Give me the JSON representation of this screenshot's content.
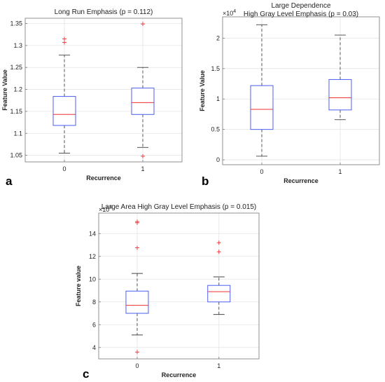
{
  "colors": {
    "box": "#4a5ff0",
    "median": "#ee3030",
    "whisker": "#444444",
    "outlier": "#ee3030",
    "grid": "#e4e4e4",
    "axes": "#777777"
  },
  "chart_data": [
    {
      "type": "box",
      "panel_label": "a",
      "title": [
        "Long Run Emphasis (p = 0.112)"
      ],
      "xlabel": "Recurrence",
      "ylabel": "Feature Value",
      "exponent_label": "",
      "categories": [
        "0",
        "1"
      ],
      "ylim": [
        1.035,
        1.362
      ],
      "yticks": [
        1.05,
        1.1,
        1.15,
        1.2,
        1.25,
        1.3,
        1.35
      ],
      "ytick_labels": [
        "1.05",
        "1.1",
        "1.15",
        "1.2",
        "1.25",
        "1.3",
        "1.35"
      ],
      "grid": true,
      "boxes": [
        {
          "whisker_low": 1.055,
          "q1": 1.118,
          "median": 1.143,
          "q3": 1.184,
          "whisker_high": 1.278,
          "outliers": [
            1.307,
            1.315
          ]
        },
        {
          "whisker_low": 1.068,
          "q1": 1.143,
          "median": 1.17,
          "q3": 1.203,
          "whisker_high": 1.25,
          "outliers": [
            1.048,
            1.349
          ]
        }
      ]
    },
    {
      "type": "box",
      "panel_label": "b",
      "title": [
        "Large Dependence",
        "High Gray Level Emphasis (p = 0.03)"
      ],
      "xlabel": "Recurrence",
      "ylabel": "Feature Value",
      "exponent_label": "10^4",
      "categories": [
        "0",
        "1"
      ],
      "ylim": [
        -0.08,
        2.35
      ],
      "yticks": [
        0,
        0.5,
        1,
        1.5,
        2
      ],
      "ytick_labels": [
        "0",
        "0.5",
        "1",
        "1.5",
        "2"
      ],
      "grid": true,
      "boxes": [
        {
          "whisker_low": 0.06,
          "q1": 0.5,
          "median": 0.83,
          "q3": 1.22,
          "whisker_high": 2.22,
          "outliers": []
        },
        {
          "whisker_low": 0.66,
          "q1": 0.82,
          "median": 1.02,
          "q3": 1.32,
          "whisker_high": 2.05,
          "outliers": []
        }
      ]
    },
    {
      "type": "box",
      "panel_label": "c",
      "title": [
        "Large Area High Gray Level Emphasis (p = 0.015)"
      ],
      "xlabel": "Recurrence",
      "ylabel": "Feature value",
      "exponent_label": "10^4",
      "categories": [
        "0",
        "1"
      ],
      "ylim": [
        3.0,
        15.8
      ],
      "yticks": [
        4,
        6,
        8,
        10,
        12,
        14
      ],
      "ytick_labels": [
        "4",
        "6",
        "8",
        "10",
        "12",
        "14"
      ],
      "grid": true,
      "boxes": [
        {
          "whisker_low": 5.1,
          "q1": 7.0,
          "median": 7.7,
          "q3": 8.95,
          "whisker_high": 10.5,
          "outliers": [
            3.6,
            12.75,
            14.95,
            15.05
          ]
        },
        {
          "whisker_low": 6.9,
          "q1": 8.0,
          "median": 8.9,
          "q3": 9.45,
          "whisker_high": 10.2,
          "outliers": [
            12.4,
            13.2
          ]
        }
      ]
    }
  ]
}
